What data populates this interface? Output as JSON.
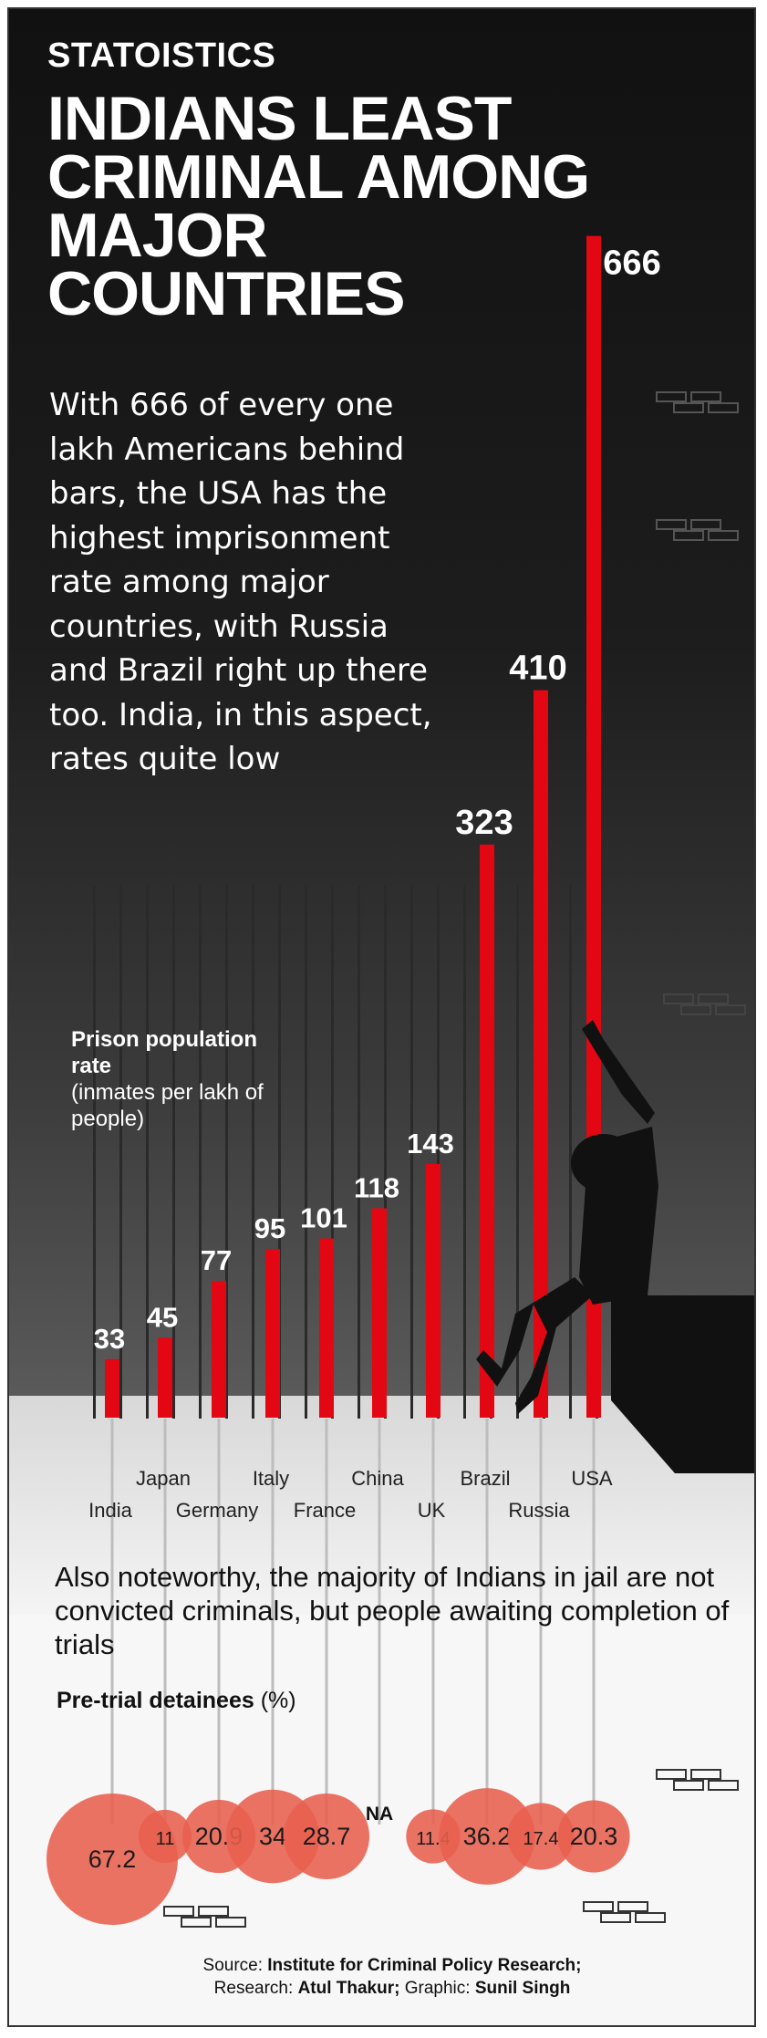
{
  "kicker": "STATOISTICS",
  "headline": "INDIANS LEAST CRIMINAL AMONG MAJOR COUNTRIES",
  "intro": "With 666 of every one lakh Americans behind bars, the USA has the highest imprisonment rate among major countries, with Russia and Brazil right up there too. India, in this aspect, rates quite low",
  "note": "Also noteworthy, the majority of Indians in jail are not convicted criminals, but people awaiting completion of trials",
  "source": {
    "source_label": "Source:",
    "source_value": "Institute for Criminal Policy Research;",
    "research_label": "Research:",
    "research_value": "Atul Thakur;",
    "graphic_label": "Graphic:",
    "graphic_value": "Sunil Singh"
  },
  "colors": {
    "bar": "#e30613",
    "bubble": "#e8604f",
    "background": "#1c1c1c"
  },
  "chart_data": [
    {
      "type": "bar",
      "ylabel": "Prison population rate",
      "ylabel_note": "(inmates per lakh of people)",
      "categories": [
        "India",
        "Japan",
        "Germany",
        "Italy",
        "France",
        "China",
        "UK",
        "Brazil",
        "Russia",
        "USA"
      ],
      "values": [
        33,
        45,
        77,
        95,
        101,
        118,
        143,
        323,
        410,
        666
      ],
      "value_labels": [
        "33",
        "45",
        "77",
        "95",
        "101",
        "118",
        "143",
        "323",
        "410",
        "666"
      ]
    },
    {
      "type": "scatter",
      "title": "Pre-trial detainees",
      "unit": "(%)",
      "categories": [
        "India",
        "Japan",
        "Germany",
        "Italy",
        "France",
        "China",
        "UK",
        "Brazil",
        "Russia",
        "USA"
      ],
      "values": [
        67.2,
        11,
        20.9,
        34,
        28.7,
        null,
        11.4,
        36.2,
        17.4,
        20.3
      ],
      "value_labels": [
        "67.2",
        "11",
        "20.9",
        "34",
        "28.7",
        "NA",
        "11.4",
        "36.2",
        "17.4",
        "20.3"
      ]
    }
  ]
}
